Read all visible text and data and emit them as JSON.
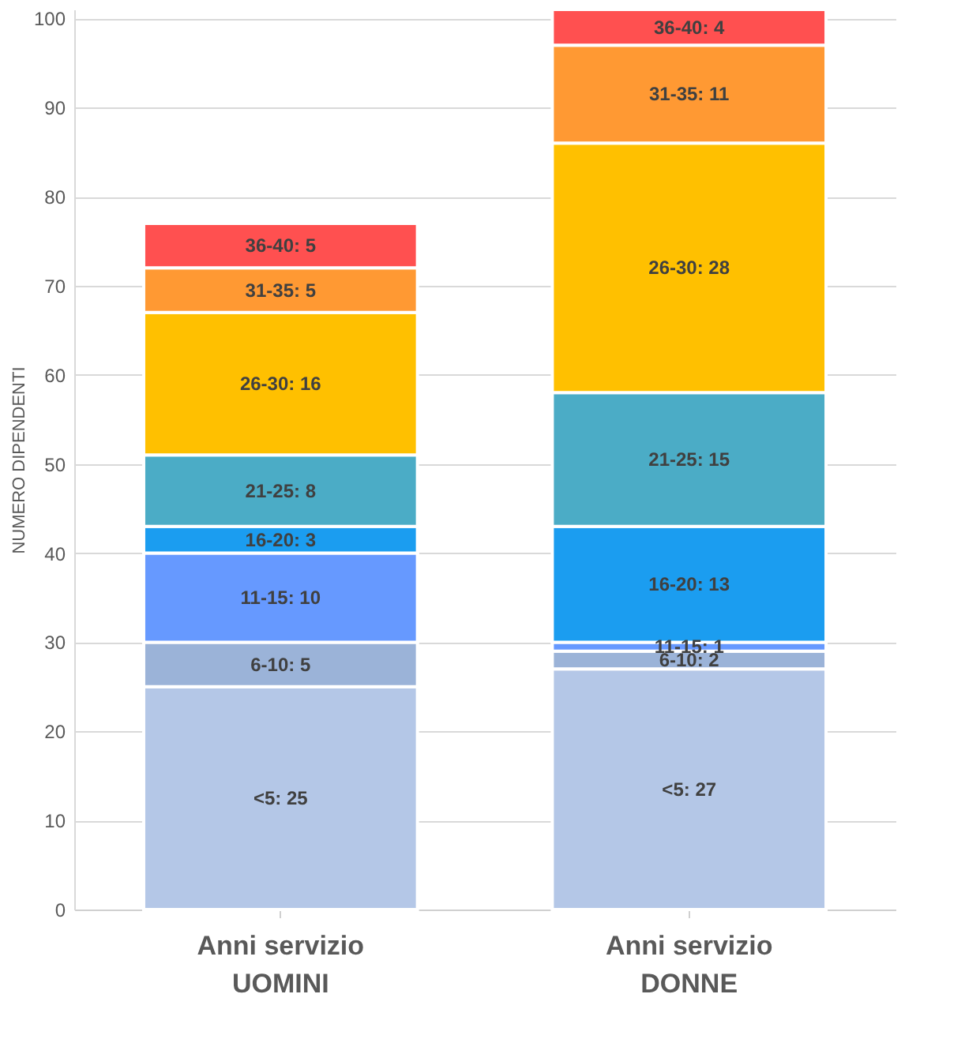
{
  "chart_data": {
    "type": "bar",
    "stacked": true,
    "ylabel": "NUMERO DIPENDENTI",
    "categories": [
      "Anni servizio\nUOMINI",
      "Anni servizio\nDONNE"
    ],
    "ylim": [
      0,
      101
    ],
    "yticks": [
      0,
      10,
      20,
      30,
      40,
      50,
      60,
      70,
      80,
      90,
      100
    ],
    "grid": "y",
    "legend": false,
    "series": [
      {
        "color": "#b4c7e7",
        "values": [
          25,
          27
        ],
        "value_labels": [
          "<5: 25",
          "<5: 27"
        ]
      },
      {
        "color": "#9bb3d8",
        "values": [
          5,
          2
        ],
        "value_labels": [
          "6-10: 5",
          "6-10: 2"
        ]
      },
      {
        "color": "#6699ff",
        "values": [
          10,
          1
        ],
        "value_labels": [
          "11-15: 10",
          "11-15: 1"
        ]
      },
      {
        "color": "#1b9df0",
        "values": [
          3,
          13
        ],
        "value_labels": [
          "16-20: 3",
          "16-20: 13"
        ]
      },
      {
        "color": "#4bacc6",
        "values": [
          8,
          15
        ],
        "value_labels": [
          "21-25: 8",
          "21-25: 15"
        ]
      },
      {
        "color": "#ffc000",
        "values": [
          16,
          28
        ],
        "value_labels": [
          "26-30: 16",
          "26-30: 28"
        ]
      },
      {
        "color": "#ff9933",
        "values": [
          5,
          11
        ],
        "value_labels": [
          "31-35: 5",
          "31-35: 11"
        ]
      },
      {
        "color": "#ff5050",
        "values": [
          5,
          4
        ],
        "value_labels": [
          "36-40: 5",
          "36-40: 4"
        ]
      }
    ]
  }
}
